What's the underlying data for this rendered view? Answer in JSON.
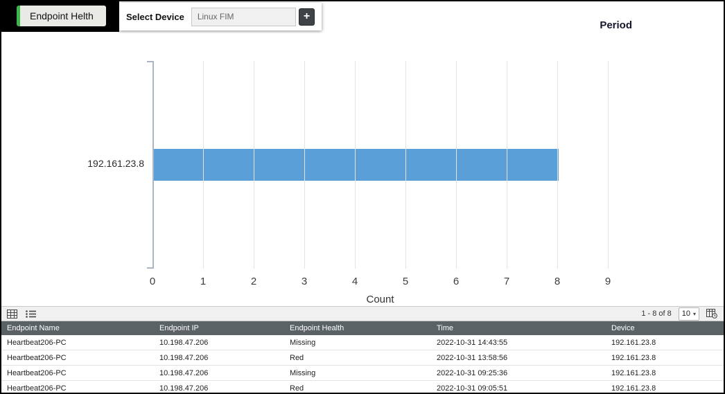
{
  "header": {
    "tab_label": "Endpoint Helth",
    "select_device_label": "Select Device",
    "device_value": "Linux FIM",
    "add_button_label": "+",
    "period_label": "Period"
  },
  "chart_data": {
    "type": "bar",
    "orientation": "horizontal",
    "title": "",
    "categories": [
      "192.161.23.8"
    ],
    "values": [
      8
    ],
    "xlabel": "Count",
    "ylabel": "",
    "x_ticks": [
      0,
      1,
      2,
      3,
      4,
      5,
      6,
      7,
      8,
      9
    ],
    "xlim": [
      0,
      9
    ],
    "grid": true,
    "legend": false,
    "bar_color": "#5b9fd9"
  },
  "toolbar": {
    "pagination": "1 - 8 of 8",
    "page_size": "10",
    "caret": "▾",
    "icons": [
      "grid-view-icon",
      "list-view-icon",
      "table-schedule-icon"
    ]
  },
  "table": {
    "columns": [
      "Endpoint Name",
      "Endpoint IP",
      "Endpoint Health",
      "Time",
      "Device"
    ],
    "rows": [
      [
        "Heartbeat206-PC",
        "10.198.47.206",
        "Missing",
        "2022-10-31 14:43:55",
        "192.161.23.8"
      ],
      [
        "Heartbeat206-PC",
        "10.198.47.206",
        "Red",
        "2022-10-31 13:58:56",
        "192.161.23.8"
      ],
      [
        "Heartbeat206-PC",
        "10.198.47.206",
        "Missing",
        "2022-10-31 09:25:36",
        "192.161.23.8"
      ],
      [
        "Heartbeat206-PC",
        "10.198.47.206",
        "Red",
        "2022-10-31 09:05:51",
        "192.161.23.8"
      ]
    ]
  }
}
